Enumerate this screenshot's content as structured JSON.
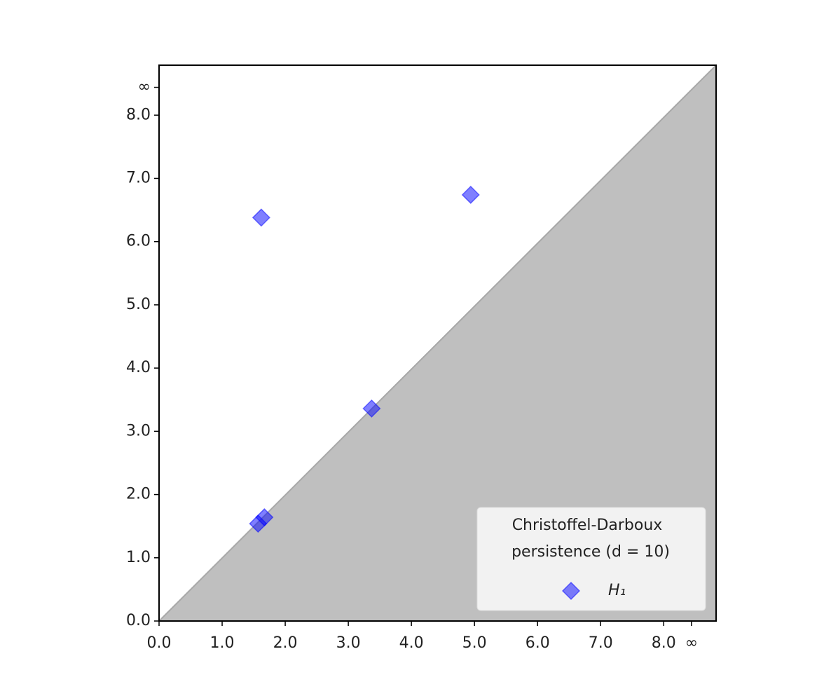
{
  "chart_data": {
    "type": "scatter",
    "legend_title": [
      "Christoffel-Darboux",
      "persistence (d = 10)"
    ],
    "legend": "lower right",
    "series": [
      {
        "name": "H₁",
        "color": "#0000ff",
        "x": [
          1.62,
          4.94,
          3.37,
          1.57,
          1.67
        ],
        "values": [
          6.38,
          6.74,
          3.36,
          1.54,
          1.64
        ]
      }
    ],
    "xlim": [
      0,
      8.83
    ],
    "ylim": [
      0,
      8.79
    ],
    "xticks": [
      {
        "value": 0,
        "label": "0.0"
      },
      {
        "value": 1,
        "label": "1.0"
      },
      {
        "value": 2,
        "label": "2.0"
      },
      {
        "value": 3,
        "label": "3.0"
      },
      {
        "value": 4,
        "label": "4.0"
      },
      {
        "value": 5,
        "label": "5.0"
      },
      {
        "value": 6,
        "label": "6.0"
      },
      {
        "value": 7,
        "label": "7.0"
      },
      {
        "value": 8,
        "label": "8.0"
      },
      {
        "value": 8.44,
        "label": "∞"
      }
    ],
    "yticks": [
      {
        "value": 0,
        "label": "0.0"
      },
      {
        "value": 1,
        "label": "1.0"
      },
      {
        "value": 2,
        "label": "2.0"
      },
      {
        "value": 3,
        "label": "3.0"
      },
      {
        "value": 4,
        "label": "4.0"
      },
      {
        "value": 5,
        "label": "5.0"
      },
      {
        "value": 6,
        "label": "6.0"
      },
      {
        "value": 7,
        "label": "7.0"
      },
      {
        "value": 8,
        "label": "8.0"
      },
      {
        "value": 8.44,
        "label": "∞"
      }
    ]
  }
}
